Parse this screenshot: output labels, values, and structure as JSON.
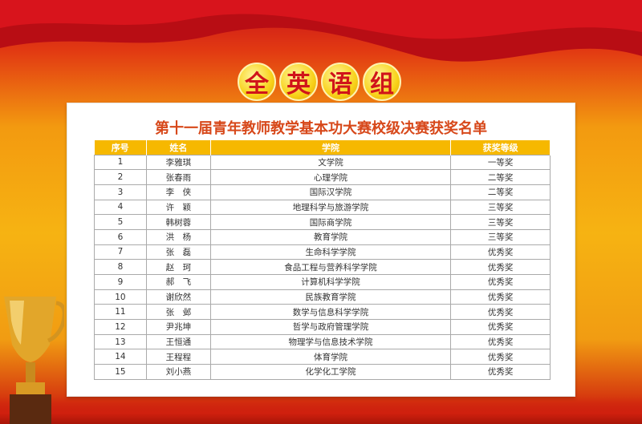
{
  "banner": [
    "全",
    "英",
    "语",
    "组"
  ],
  "title": "第十一届青年教师教学基本功大赛校级决赛获奖名单",
  "table": {
    "headers": [
      "序号",
      "姓名",
      "学院",
      "获奖等级"
    ],
    "rows": [
      [
        "1",
        "李雅琪",
        "文学院",
        "一等奖"
      ],
      [
        "2",
        "张春雨",
        "心理学院",
        "二等奖"
      ],
      [
        "3",
        "李　侠",
        "国际汉学院",
        "二等奖"
      ],
      [
        "4",
        "许　颖",
        "地理科学与旅游学院",
        "三等奖"
      ],
      [
        "5",
        "韩树蓉",
        "国际商学院",
        "三等奖"
      ],
      [
        "6",
        "洪　杨",
        "教育学院",
        "三等奖"
      ],
      [
        "7",
        "张　磊",
        "生命科学学院",
        "优秀奖"
      ],
      [
        "8",
        "赵　珂",
        "食品工程与营养科学学院",
        "优秀奖"
      ],
      [
        "9",
        "郝　飞",
        "计算机科学学院",
        "优秀奖"
      ],
      [
        "10",
        "谢欣然",
        "民族教育学院",
        "优秀奖"
      ],
      [
        "11",
        "张　邺",
        "数学与信息科学学院",
        "优秀奖"
      ],
      [
        "12",
        "尹兆坤",
        "哲学与政府管理学院",
        "优秀奖"
      ],
      [
        "13",
        "王恒通",
        "物理学与信息技术学院",
        "优秀奖"
      ],
      [
        "14",
        "王程程",
        "体育学院",
        "优秀奖"
      ],
      [
        "15",
        "刘小燕",
        "化学化工学院",
        "优秀奖"
      ]
    ]
  },
  "colors": {
    "header": "#f6b800",
    "title": "#d7481a",
    "banner_text": "#d0141a"
  }
}
